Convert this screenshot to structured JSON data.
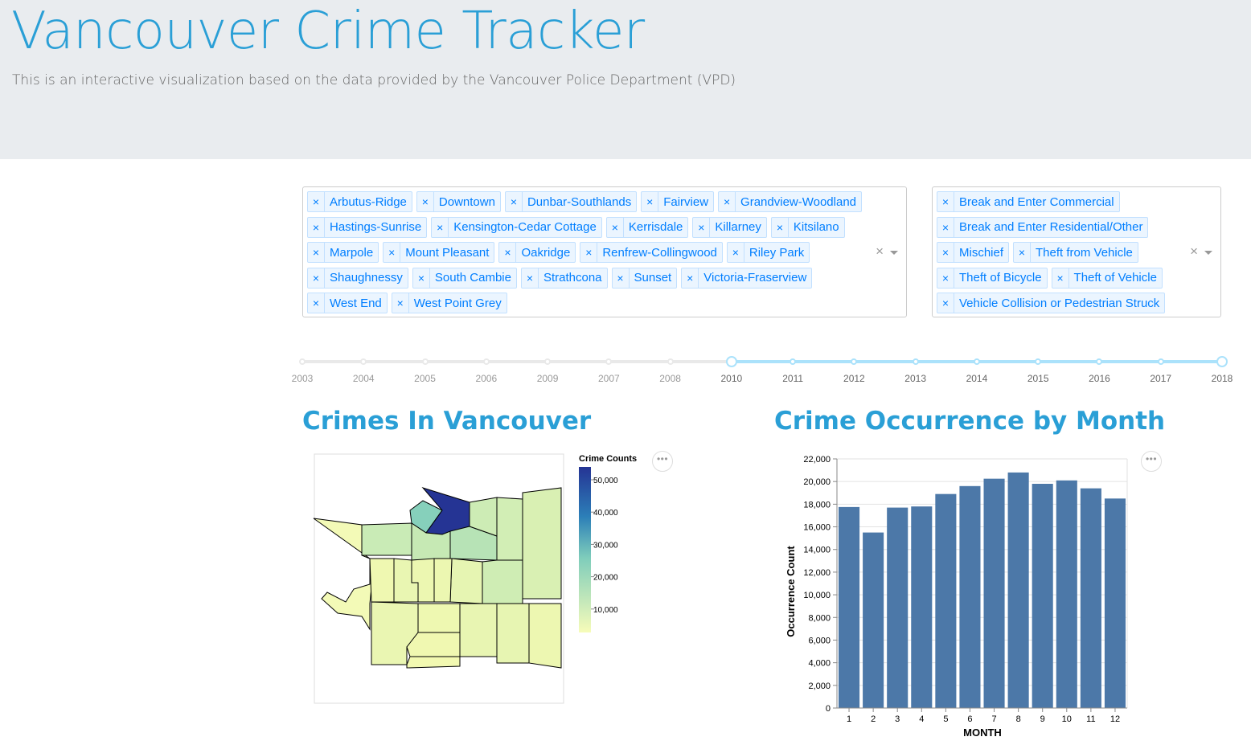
{
  "header": {
    "title": "Vancouver Crime Tracker",
    "subtitle": "This is an interactive visualization based on the data provided by the Vancouver Police Department (VPD)"
  },
  "neighbourhood_filter": {
    "selected": [
      "Arbutus-Ridge",
      "Downtown",
      "Dunbar-Southlands",
      "Fairview",
      "Grandview-Woodland",
      "Hastings-Sunrise",
      "Kensington-Cedar Cottage",
      "Kerrisdale",
      "Killarney",
      "Kitsilano",
      "Marpole",
      "Mount Pleasant",
      "Oakridge",
      "Renfrew-Collingwood",
      "Riley Park",
      "Shaughnessy",
      "South Cambie",
      "Strathcona",
      "Sunset",
      "Victoria-Fraserview",
      "West End",
      "West Point Grey"
    ],
    "remove_glyph": "×",
    "clear_glyph": "×"
  },
  "crime_type_filter": {
    "selected": [
      "Break and Enter Commercial",
      "Break and Enter Residential/Other",
      "Mischief",
      "Theft from Vehicle",
      "Theft of Bicycle",
      "Theft of Vehicle",
      "Vehicle Collision or Pedestrian Struck"
    ],
    "remove_glyph": "×",
    "clear_glyph": "×"
  },
  "year_slider": {
    "marks": [
      "2003",
      "2004",
      "2005",
      "2006",
      "2009",
      "2007",
      "2008",
      "2010",
      "2011",
      "2012",
      "2013",
      "2014",
      "2015",
      "2016",
      "2017",
      "2018"
    ],
    "range_start_index": 7,
    "range_end_index": 15
  },
  "map_section": {
    "title": "Crimes In Vancouver",
    "menu_glyph": "•••",
    "legend_title": "Crime Counts",
    "legend_ticks": [
      "50,000",
      "40,000",
      "30,000",
      "20,000",
      "10,000"
    ],
    "color_low": "#f7fcb9",
    "color_high": "#253494"
  },
  "bar_section": {
    "title": "Crime Occurrence by Month",
    "menu_glyph": "•••",
    "bar_color": "#4c78a8"
  },
  "chart_data": {
    "type": "bar",
    "categories": [
      "1",
      "2",
      "3",
      "4",
      "5",
      "6",
      "7",
      "8",
      "9",
      "10",
      "11",
      "12"
    ],
    "values": [
      17750,
      15500,
      17700,
      17800,
      18900,
      19600,
      20250,
      20800,
      19800,
      20100,
      19400,
      18500
    ],
    "xlabel": "MONTH",
    "ylabel": "Occurrence Count",
    "ylim": [
      0,
      22000
    ],
    "yticks": [
      "0",
      "2,000",
      "4,000",
      "6,000",
      "8,000",
      "10,000",
      "12,000",
      "14,000",
      "16,000",
      "18,000",
      "20,000",
      "22,000"
    ],
    "grid": true
  }
}
